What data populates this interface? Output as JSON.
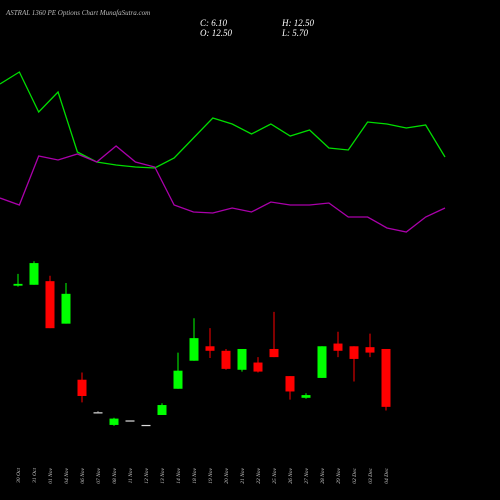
{
  "chart_data": {
    "type": "candlestick",
    "title": "ASTRAL 1360 PE Options Chart MunafaSutra.com",
    "info": [
      "C: 6.10",
      "H: 12.50",
      "O: 12.50",
      "L: 5.70"
    ],
    "categories": [
      "30 Oct",
      "31 Oct",
      "01 Nov",
      "04 Nov",
      "06 Nov",
      "07 Nov",
      "08 Nov",
      "11 Nov",
      "12 Nov",
      "13 Nov",
      "14 Nov",
      "18 Nov",
      "19 Nov",
      "20 Nov",
      "21 Nov",
      "22 Nov",
      "25 Nov",
      "26 Nov",
      "27 Nov",
      "28 Nov",
      "29 Nov",
      "02 Dec",
      "03 Dec",
      "04 Dec"
    ],
    "open": [
      19.5,
      19.6,
      20.0,
      15.3,
      9.1,
      5.5,
      4.1,
      4.6,
      4.1,
      5.2,
      8.1,
      11.2,
      12.8,
      12.3,
      10.2,
      11.0,
      12.5,
      9.5,
      7.1,
      9.3,
      13.1,
      12.8,
      12.7,
      12.5
    ],
    "high": [
      20.8,
      22.2,
      20.6,
      19.8,
      9.9,
      5.6,
      4.9,
      4.6,
      4.1,
      6.5,
      12.1,
      15.9,
      14.8,
      12.5,
      12.5,
      11.6,
      16.6,
      9.5,
      7.6,
      12.8,
      14.4,
      12.8,
      14.2,
      12.5
    ],
    "low": [
      19.4,
      19.6,
      14.8,
      15.3,
      6.6,
      5.5,
      4.0,
      4.6,
      4.1,
      5.2,
      8.1,
      11.2,
      11.5,
      10.2,
      10.0,
      9.9,
      11.6,
      6.9,
      7.0,
      9.3,
      11.6,
      8.9,
      11.6,
      5.7
    ],
    "close": [
      19.7,
      22.0,
      14.8,
      18.6,
      7.3,
      5.5,
      4.8,
      4.6,
      4.1,
      6.3,
      10.1,
      13.7,
      12.3,
      10.3,
      12.5,
      10.0,
      11.6,
      7.8,
      7.4,
      12.8,
      12.3,
      11.4,
      12.1,
      6.1
    ],
    "up_color": "#00ff00",
    "down_color": "#ff0000",
    "flat_color": "#dddddd",
    "ylim": [
      0,
      24
    ],
    "lines": [
      {
        "color": "#00dd00",
        "axis": "y2",
        "values": [
          94,
          97,
          87,
          92,
          77,
          74.5,
          73.75,
          73.25,
          73,
          75.5,
          80.5,
          85.5,
          84,
          81.5,
          84,
          81,
          82.5,
          78,
          77.5,
          84.5,
          84,
          83,
          83.75,
          75.75
        ]
      },
      {
        "color": "#aa00aa",
        "axis": "y2",
        "values": [
          65.5,
          63.75,
          76,
          75,
          76.5,
          74.5,
          78.5,
          74.5,
          73.25,
          63.75,
          62,
          61.75,
          63,
          62,
          64.5,
          63.75,
          63.75,
          64.25,
          60.75,
          60.75,
          58,
          57,
          60.75,
          63
        ]
      }
    ],
    "y2lim": [
      0,
      100
    ]
  }
}
